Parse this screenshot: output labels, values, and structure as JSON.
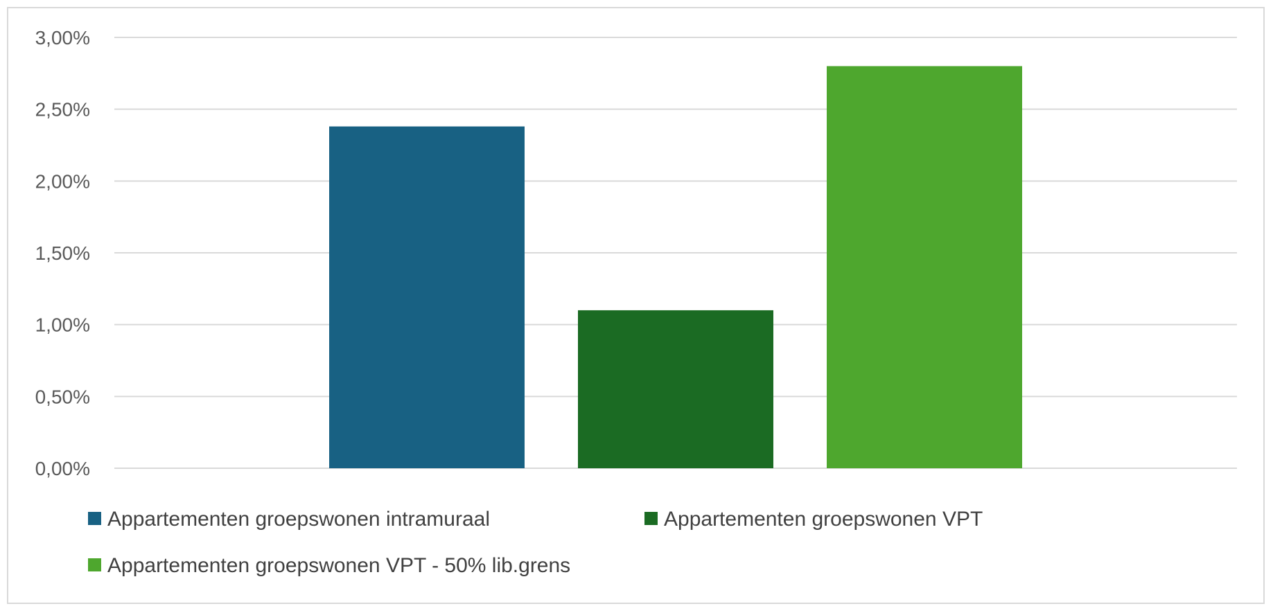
{
  "chart_data": {
    "type": "bar",
    "title": "",
    "xlabel": "",
    "ylabel": "",
    "categories": [
      ""
    ],
    "ylim": [
      0,
      3.0
    ],
    "ytick_values": [
      0,
      0.5,
      1.0,
      1.5,
      2.0,
      2.5,
      3.0
    ],
    "ytick_labels": [
      "0,00%",
      "0,50%",
      "1,00%",
      "1,50%",
      "2,00%",
      "2,50%",
      "3,00%"
    ],
    "grid": true,
    "legend_position": "bottom",
    "series": [
      {
        "name": "Appartementen groepswonen intramuraal",
        "values": [
          2.38
        ],
        "color": "#186183"
      },
      {
        "name": "Appartementen groepswonen VPT",
        "values": [
          1.1
        ],
        "color": "#1b6b23"
      },
      {
        "name": "Appartementen groepswonen VPT - 50% lib.grens",
        "values": [
          2.8
        ],
        "color": "#4ea72e"
      }
    ]
  }
}
